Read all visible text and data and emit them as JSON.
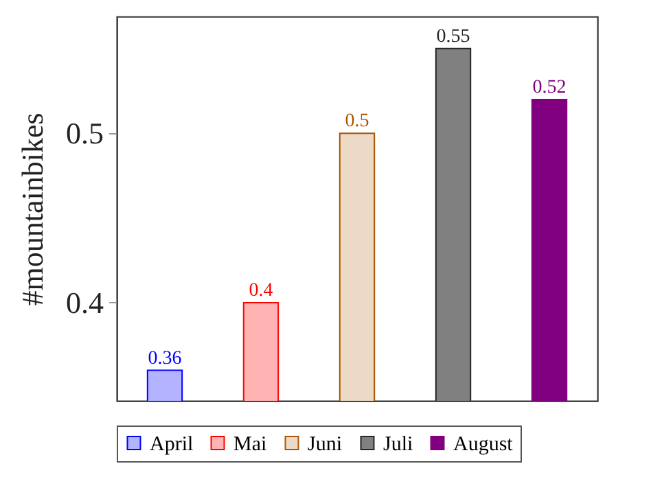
{
  "chart_data": {
    "type": "bar",
    "ylabel": "#mountainbikes",
    "categories": [
      null,
      null,
      null,
      null,
      null
    ],
    "series": [
      {
        "name": "April",
        "color": "#b3b3ff",
        "values": [
          0.36,
          null,
          null,
          null,
          null
        ]
      },
      {
        "name": "Mai",
        "color": "#ffb3b3",
        "values": [
          null,
          0.4,
          null,
          null,
          null
        ]
      },
      {
        "name": "Juni",
        "color": "#ecd9c6",
        "values": [
          null,
          null,
          0.5,
          null,
          null
        ]
      },
      {
        "name": "Juli",
        "color": "#808080",
        "values": [
          null,
          null,
          null,
          0.55,
          null
        ]
      },
      {
        "name": "August",
        "color": "#800080",
        "values": [
          null,
          null,
          null,
          null,
          0.52
        ]
      }
    ],
    "ylim": [
      0.342,
      0.569
    ],
    "yticks": [
      0.4,
      0.5
    ],
    "data_labels": true,
    "legend": "bottom",
    "grid": false,
    "tick_labels": "y"
  }
}
